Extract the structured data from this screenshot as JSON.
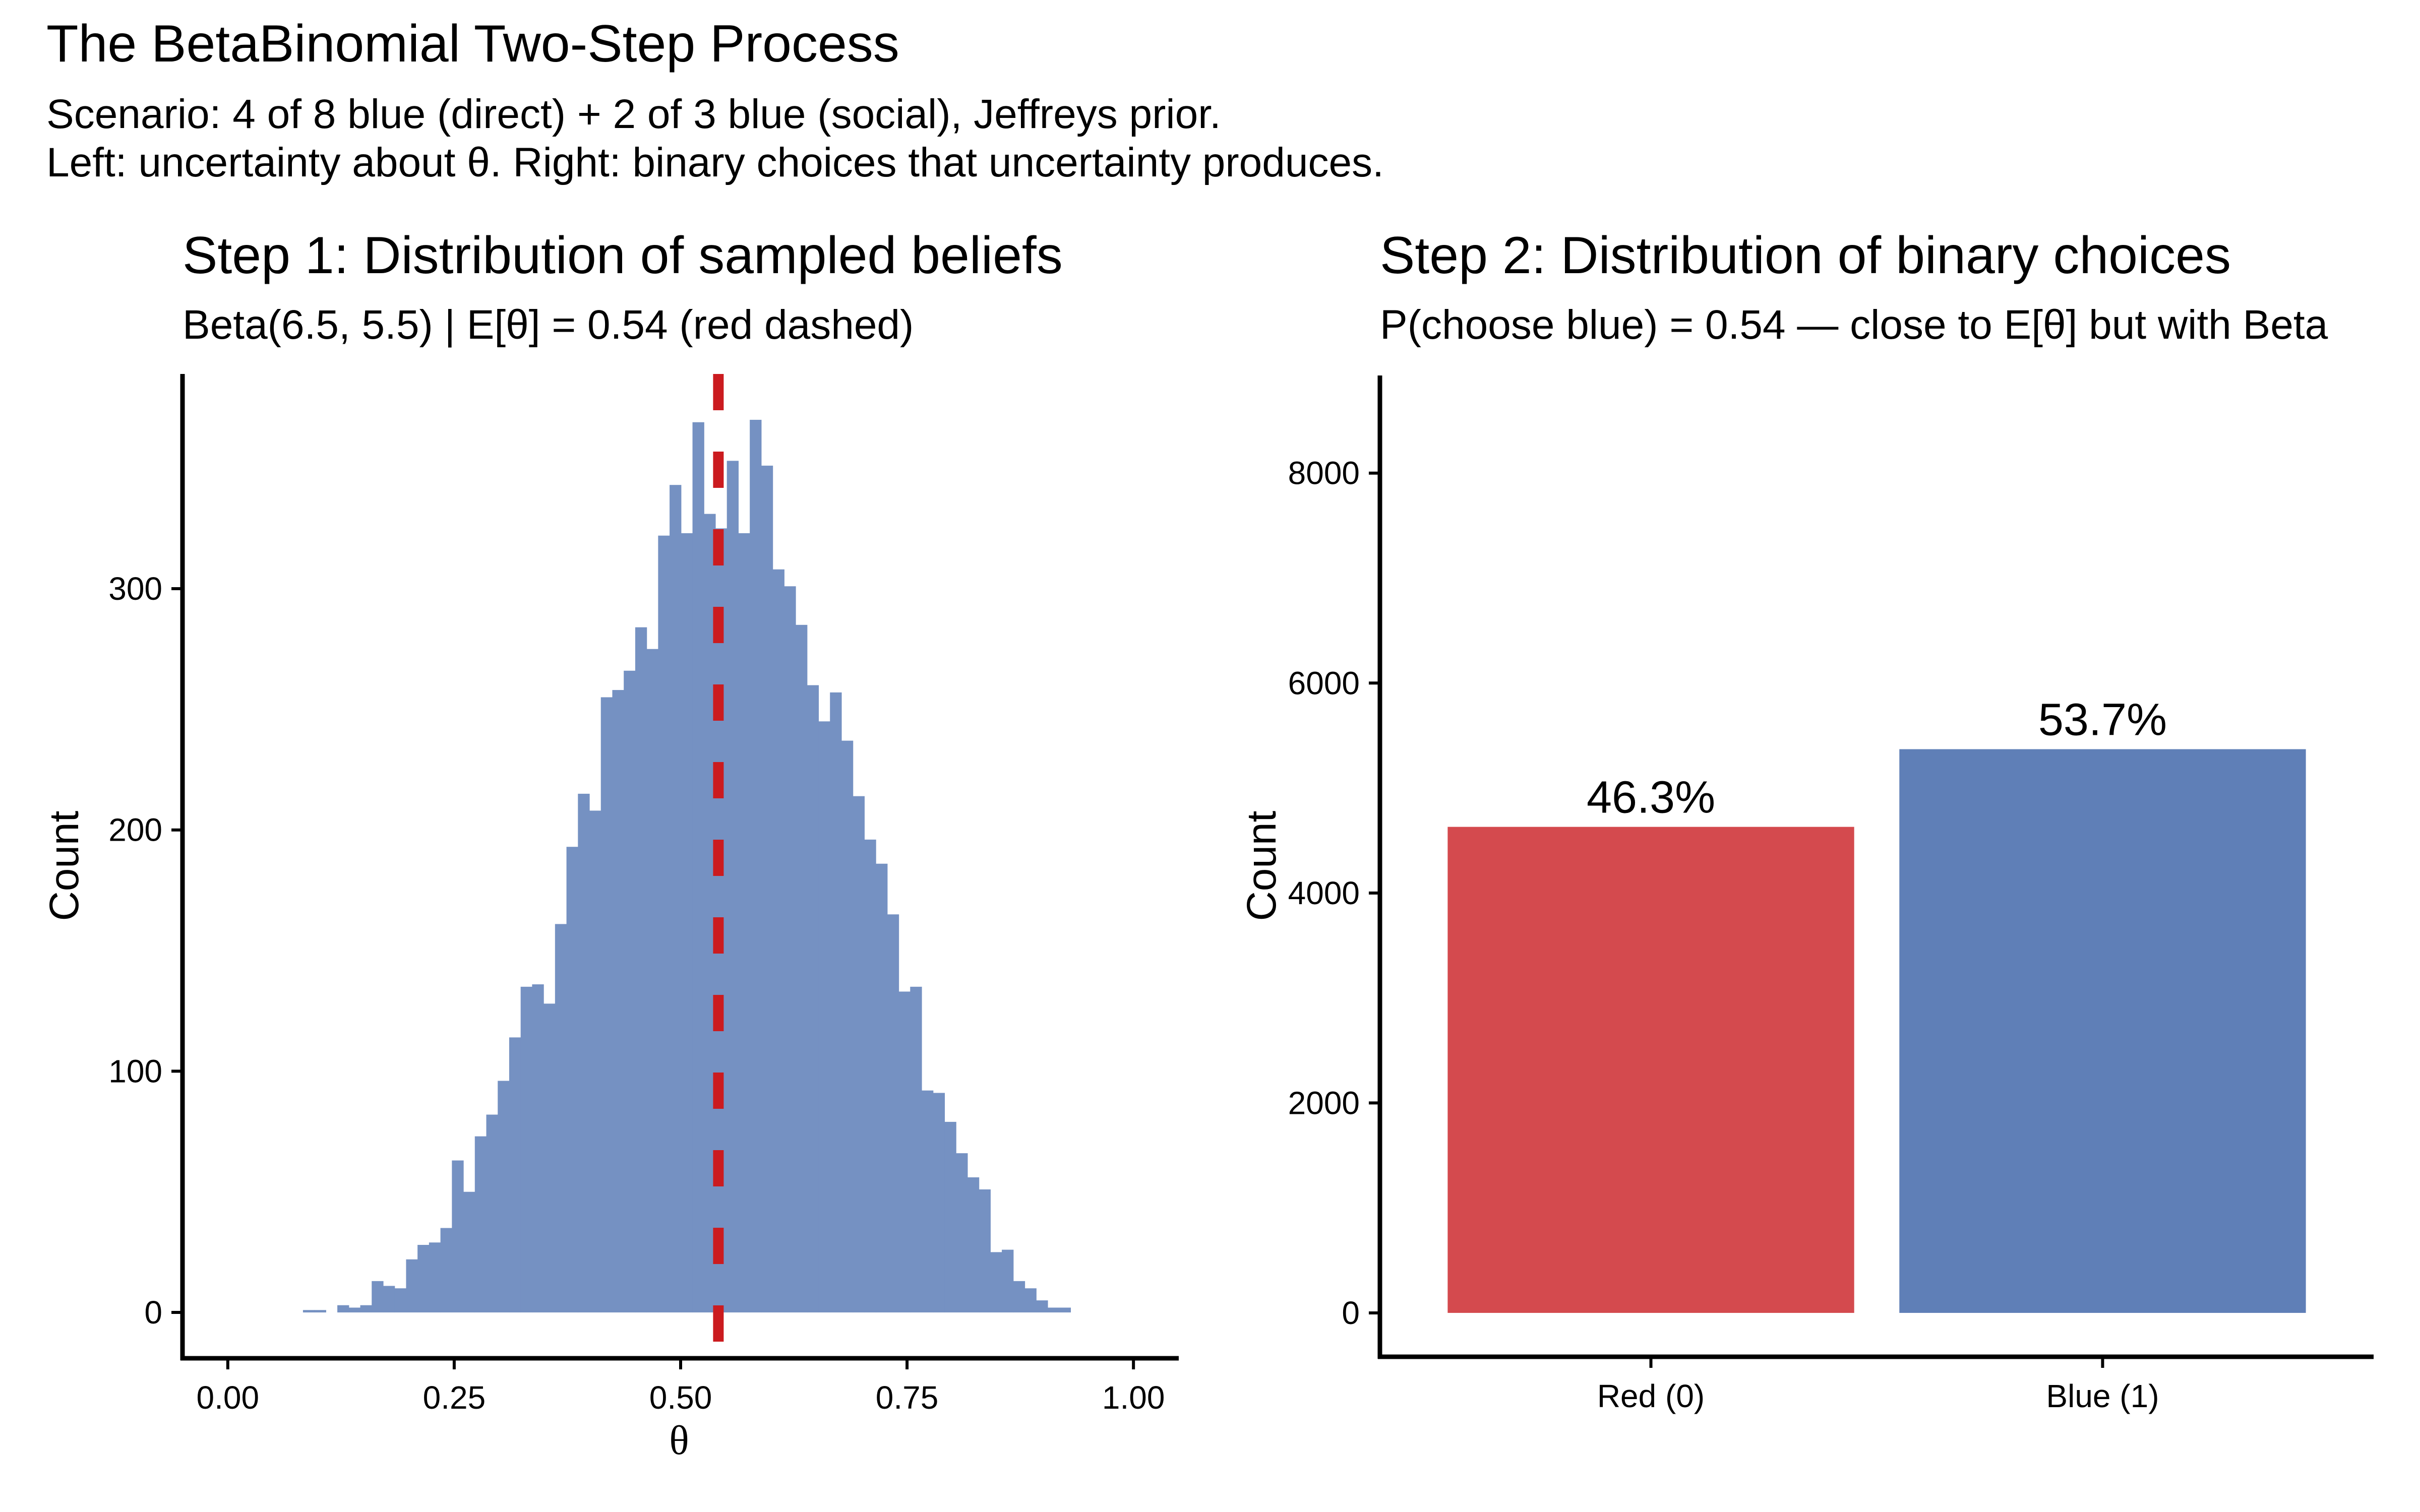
{
  "header": {
    "title": "The BetaBinomial Two-Step Process",
    "subtitle_line1": "Scenario: 4 of 8 blue (direct) + 2 of 3 blue (social), Jeffreys prior.",
    "subtitle_line2": "Left: uncertainty about θ.  Right: binary choices that uncertainty produces."
  },
  "colors": {
    "histogram_fill": "#7591C2",
    "mean_line": "#CB1B1F",
    "red_bar": "#D44A4E",
    "blue_bar": "#5F7FB7",
    "axis": "#000000"
  },
  "chart_data": [
    {
      "type": "bar",
      "subtype": "histogram",
      "title": "Step 1: Distribution of sampled beliefs",
      "subtitle": "Beta(6.5, 5.5)  |  E[θ] = 0.54 (red dashed)",
      "xlabel": "θ",
      "ylabel": "Count",
      "xlim": [
        -0.05,
        1.05
      ],
      "ylim": [
        -19,
        389
      ],
      "xticks": [
        0.0,
        0.25,
        0.5,
        0.75,
        1.0
      ],
      "xtick_labels": [
        "0.00",
        "0.25",
        "0.50",
        "0.75",
        "1.00"
      ],
      "yticks": [
        0,
        100,
        200,
        300
      ],
      "ytick_labels": [
        "0",
        "100",
        "200",
        "300"
      ],
      "bin_start": 0.083,
      "bin_width": 0.01265,
      "counts": [
        1,
        1,
        0,
        3,
        2,
        3,
        13,
        11,
        10,
        22,
        28,
        29,
        35,
        63,
        50,
        73,
        82,
        96,
        114,
        135,
        136,
        128,
        161,
        193,
        215,
        208,
        255,
        258,
        266,
        284,
        275,
        322,
        343,
        323,
        369,
        331,
        325,
        353,
        323,
        370,
        351,
        308,
        301,
        285,
        260,
        245,
        257,
        237,
        214,
        196,
        186,
        165,
        133,
        135,
        92,
        91,
        79,
        66,
        56,
        51,
        25,
        26,
        13,
        10,
        5,
        2,
        2
      ],
      "vline": {
        "x": 0.5417,
        "style": "dashed",
        "label": "E[θ]"
      },
      "grid": false
    },
    {
      "type": "bar",
      "title": "Step 2: Distribution of binary choices",
      "subtitle": "P(choose blue) = 0.54 — close to E[θ] but with Beta",
      "xlabel": "",
      "ylabel": "Count",
      "categories": [
        "Red (0)",
        "Blue (1)"
      ],
      "values": [
        4630,
        5370
      ],
      "data_labels": [
        "46.3%",
        "53.7%"
      ],
      "ylim": [
        -418,
        8930
      ],
      "yticks": [
        0,
        2000,
        4000,
        6000,
        8000
      ],
      "ytick_labels": [
        "0",
        "2000",
        "4000",
        "6000",
        "8000"
      ],
      "grid": false
    }
  ]
}
